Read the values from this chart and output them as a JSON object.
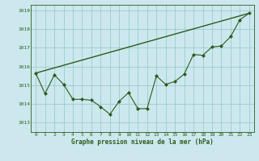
{
  "title": "Graphe pression niveau de la mer (hPa)",
  "background_color": "#cce8ee",
  "grid_color": "#99cccc",
  "line_color": "#2d5a1b",
  "xlim": [
    -0.5,
    23.5
  ],
  "ylim": [
    1012.5,
    1019.3
  ],
  "yticks": [
    1013,
    1014,
    1015,
    1016,
    1017,
    1018,
    1019
  ],
  "xticks": [
    0,
    1,
    2,
    3,
    4,
    5,
    6,
    7,
    8,
    9,
    10,
    11,
    12,
    13,
    14,
    15,
    16,
    17,
    18,
    19,
    20,
    21,
    22,
    23
  ],
  "smooth_line": {
    "x": [
      0,
      23
    ],
    "y": [
      1015.65,
      1018.85
    ]
  },
  "detailed_line": {
    "x": [
      0,
      1,
      2,
      3,
      4,
      5,
      6,
      7,
      8,
      9,
      10,
      11,
      12,
      13,
      14,
      15,
      16,
      17,
      18,
      19,
      20,
      21,
      22,
      23
    ],
    "y": [
      1015.65,
      1014.55,
      1015.55,
      1015.05,
      1014.25,
      1014.25,
      1014.2,
      1013.85,
      1013.45,
      1014.15,
      1014.6,
      1013.75,
      1013.75,
      1015.5,
      1015.05,
      1015.2,
      1015.6,
      1016.65,
      1016.6,
      1017.05,
      1017.1,
      1017.6,
      1018.5,
      1018.85
    ]
  }
}
